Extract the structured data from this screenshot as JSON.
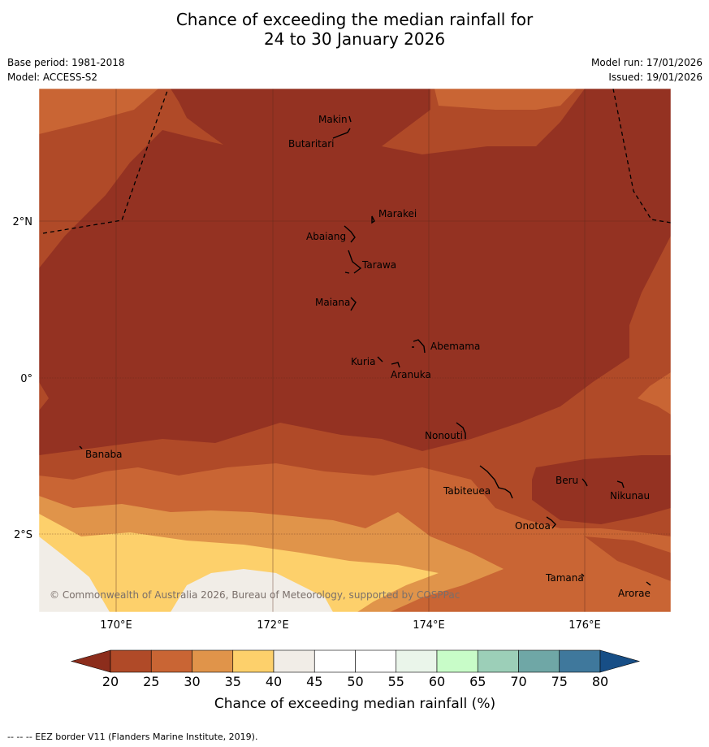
{
  "title_line1": "Chance of exceeding the median rainfall for",
  "title_line2": "24 to 30 January 2026",
  "meta": {
    "base_period": "Base period: 1981-2018",
    "model": "Model: ACCESS-S2",
    "model_run": "Model run: 17/01/2026",
    "issued": "Issued: 19/01/2026"
  },
  "map": {
    "longitude_labels": [
      "170°E",
      "172°E",
      "174°E",
      "176°E"
    ],
    "latitude_labels": [
      "2°N",
      "0°",
      "2°S"
    ],
    "places": [
      {
        "name": "Makin"
      },
      {
        "name": "Butaritari"
      },
      {
        "name": "Marakei"
      },
      {
        "name": "Abaiang"
      },
      {
        "name": "Tarawa"
      },
      {
        "name": "Maiana"
      },
      {
        "name": "Abemama"
      },
      {
        "name": "Kuria"
      },
      {
        "name": "Aranuka"
      },
      {
        "name": "Nonouti"
      },
      {
        "name": "Banaba"
      },
      {
        "name": "Beru"
      },
      {
        "name": "Nikunau"
      },
      {
        "name": "Tabiteuea"
      },
      {
        "name": "Onotoa"
      },
      {
        "name": "Tamana"
      },
      {
        "name": "Arorae"
      }
    ],
    "copyright": "© Commonwealth of Australia 2026, Bureau of Meteorology, supported by COSPPac"
  },
  "colorbar": {
    "ticks": [
      "20",
      "25",
      "30",
      "35",
      "40",
      "45",
      "50",
      "55",
      "60",
      "65",
      "70",
      "75",
      "80"
    ],
    "colors": [
      "#8c2d1c",
      "#b04a28",
      "#c96534",
      "#e0944a",
      "#fdd06b",
      "#f1ede7",
      "#ffffff",
      "#ffffff",
      "#eaf5ea",
      "#c8fcc8",
      "#9ccfb8",
      "#6fa7a6",
      "#3f789c",
      "#174e86"
    ],
    "title": "Chance of exceeding median rainfall (%)"
  },
  "footnote": "--  --  -- EEZ border V11 (Flanders Marine Institute, 2019)."
}
